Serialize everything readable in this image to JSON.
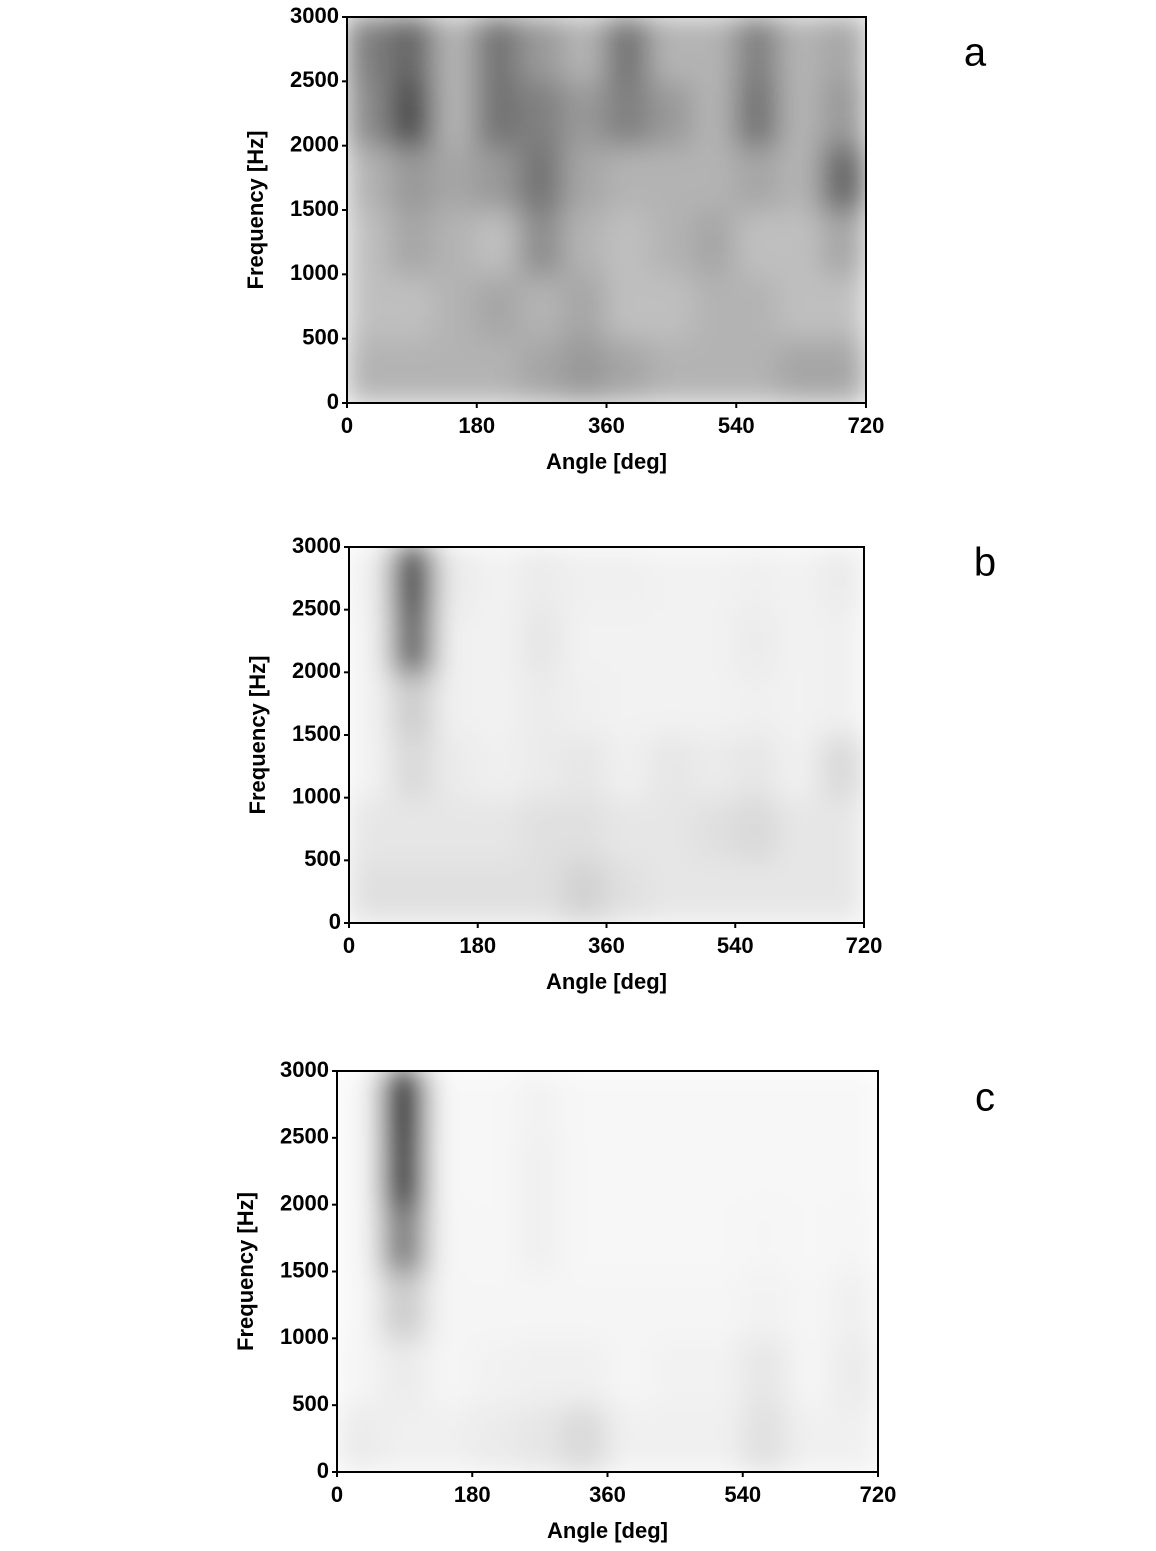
{
  "chart_data": [
    {
      "type": "heatmap",
      "panel_label": "a",
      "xlabel": "Angle [deg]",
      "ylabel": "Frequency [Hz]",
      "xlim": [
        0,
        720
      ],
      "ylim": [
        0,
        3000
      ],
      "xticks": [
        0,
        180,
        360,
        540,
        720
      ],
      "yticks": [
        0,
        500,
        1000,
        1500,
        2000,
        2500,
        3000
      ],
      "xbins": [
        0,
        60,
        120,
        180,
        240,
        300,
        360,
        420,
        480,
        540,
        600,
        660,
        720
      ],
      "ybins": [
        0,
        500,
        1000,
        1500,
        2000,
        2500,
        3000
      ],
      "colormap": [
        "#ffffff",
        "#000000"
      ],
      "values": [
        [
          0.3,
          0.3,
          0.3,
          0.3,
          0.35,
          0.4,
          0.35,
          0.3,
          0.3,
          0.3,
          0.35,
          0.35
        ],
        [
          0.25,
          0.25,
          0.3,
          0.35,
          0.3,
          0.35,
          0.25,
          0.25,
          0.3,
          0.3,
          0.25,
          0.25
        ],
        [
          0.25,
          0.35,
          0.3,
          0.25,
          0.45,
          0.3,
          0.25,
          0.3,
          0.35,
          0.25,
          0.25,
          0.35
        ],
        [
          0.3,
          0.4,
          0.35,
          0.4,
          0.55,
          0.35,
          0.3,
          0.3,
          0.3,
          0.35,
          0.3,
          0.6
        ],
        [
          0.45,
          0.7,
          0.3,
          0.55,
          0.5,
          0.4,
          0.5,
          0.4,
          0.3,
          0.55,
          0.3,
          0.4
        ],
        [
          0.5,
          0.6,
          0.3,
          0.55,
          0.4,
          0.3,
          0.55,
          0.3,
          0.3,
          0.5,
          0.3,
          0.35
        ]
      ]
    },
    {
      "type": "heatmap",
      "panel_label": "b",
      "xlabel": "Angle [deg]",
      "ylabel": "Frequency [Hz]",
      "xlim": [
        0,
        720
      ],
      "ylim": [
        0,
        3000
      ],
      "xticks": [
        0,
        180,
        360,
        540,
        720
      ],
      "yticks": [
        0,
        500,
        1000,
        1500,
        2000,
        2500,
        3000
      ],
      "xbins": [
        0,
        60,
        120,
        180,
        240,
        300,
        360,
        420,
        480,
        540,
        600,
        660,
        720
      ],
      "ybins": [
        0,
        500,
        1000,
        1500,
        2000,
        2500,
        3000
      ],
      "colormap": [
        "#ffffff",
        "#000000"
      ],
      "values": [
        [
          0.12,
          0.12,
          0.12,
          0.12,
          0.12,
          0.18,
          0.12,
          0.1,
          0.1,
          0.1,
          0.1,
          0.1
        ],
        [
          0.1,
          0.1,
          0.1,
          0.1,
          0.12,
          0.12,
          0.1,
          0.1,
          0.12,
          0.15,
          0.1,
          0.1
        ],
        [
          0.05,
          0.15,
          0.08,
          0.06,
          0.08,
          0.1,
          0.06,
          0.1,
          0.08,
          0.1,
          0.06,
          0.15
        ],
        [
          0.05,
          0.2,
          0.06,
          0.05,
          0.08,
          0.06,
          0.05,
          0.05,
          0.05,
          0.06,
          0.05,
          0.06
        ],
        [
          0.05,
          0.6,
          0.06,
          0.05,
          0.1,
          0.05,
          0.05,
          0.05,
          0.05,
          0.08,
          0.05,
          0.06
        ],
        [
          0.06,
          0.7,
          0.08,
          0.05,
          0.08,
          0.06,
          0.06,
          0.05,
          0.05,
          0.06,
          0.05,
          0.08
        ]
      ]
    },
    {
      "type": "heatmap",
      "panel_label": "c",
      "xlabel": "Angle [deg]",
      "ylabel": "Frequency [Hz]",
      "xlim": [
        0,
        720
      ],
      "ylim": [
        0,
        3000
      ],
      "xticks": [
        0,
        180,
        360,
        540,
        720
      ],
      "yticks": [
        0,
        500,
        1000,
        1500,
        2000,
        2500,
        3000
      ],
      "xbins": [
        0,
        60,
        120,
        180,
        240,
        300,
        360,
        420,
        480,
        540,
        600,
        660,
        720
      ],
      "ybins": [
        0,
        500,
        1000,
        1500,
        2000,
        2500,
        3000
      ],
      "colormap": [
        "#ffffff",
        "#000000"
      ],
      "values": [
        [
          0.08,
          0.06,
          0.06,
          0.08,
          0.1,
          0.15,
          0.06,
          0.06,
          0.06,
          0.12,
          0.06,
          0.06
        ],
        [
          0.04,
          0.08,
          0.04,
          0.05,
          0.06,
          0.06,
          0.04,
          0.05,
          0.05,
          0.1,
          0.04,
          0.08
        ],
        [
          0.03,
          0.2,
          0.04,
          0.04,
          0.04,
          0.04,
          0.04,
          0.04,
          0.04,
          0.05,
          0.04,
          0.06
        ],
        [
          0.03,
          0.5,
          0.04,
          0.03,
          0.06,
          0.03,
          0.03,
          0.03,
          0.03,
          0.04,
          0.03,
          0.04
        ],
        [
          0.03,
          0.75,
          0.03,
          0.03,
          0.06,
          0.03,
          0.03,
          0.03,
          0.03,
          0.03,
          0.03,
          0.03
        ],
        [
          0.03,
          0.8,
          0.03,
          0.03,
          0.05,
          0.03,
          0.03,
          0.03,
          0.03,
          0.03,
          0.03,
          0.03
        ]
      ]
    }
  ]
}
